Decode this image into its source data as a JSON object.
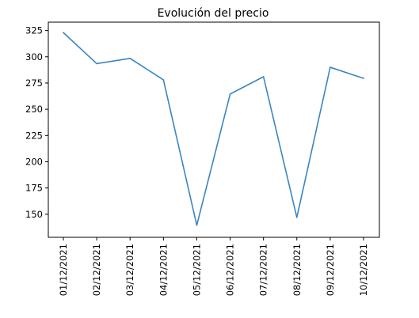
{
  "chart_data": {
    "type": "line",
    "title": "Evolución del precio",
    "xlabel": "",
    "ylabel": "",
    "categories": [
      "01/12/2021",
      "02/12/2021",
      "03/12/2021",
      "04/12/2021",
      "05/12/2021",
      "06/12/2021",
      "07/12/2021",
      "08/12/2021",
      "09/12/2021",
      "10/12/2021"
    ],
    "series": [
      {
        "values": [
          323,
          293.5,
          298.5,
          278,
          139.5,
          264.5,
          281,
          147,
          290,
          279.5
        ],
        "color": "#3a86c0"
      }
    ],
    "ylim": [
      128,
      333
    ],
    "yticks": [
      150,
      175,
      200,
      225,
      250,
      275,
      300,
      325
    ],
    "grid": false,
    "legend": "none"
  }
}
